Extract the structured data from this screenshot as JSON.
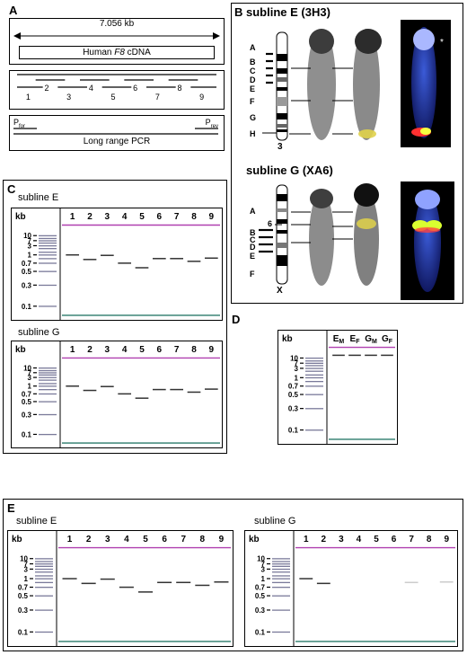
{
  "panels": {
    "A": {
      "label": "A",
      "length_label": "7.056 kb",
      "cdna_pre": "Human ",
      "cdna_gene": "F8",
      "cdna_post": " cDNA",
      "amplicons": [
        "1",
        "2",
        "3",
        "4",
        "5",
        "6",
        "7",
        "8",
        "9"
      ],
      "primer_for_main": "P",
      "primer_for_sub": "for",
      "primer_rev_main": "P",
      "primer_rev_sub": "rev",
      "pcr_label": "Long range PCR"
    },
    "B": {
      "label": "B",
      "title_e": "subline E (3H3)",
      "title_g": "subline G (XA6)",
      "bands_e": [
        "A",
        "B",
        "C",
        "D",
        "E",
        "F",
        "G",
        "H"
      ],
      "chrom_e": "3",
      "bands_g": [
        "A",
        "B",
        "C",
        "D",
        "E",
        "F"
      ],
      "band_g_marker": "6",
      "chrom_g": "X",
      "asterisk": "*"
    },
    "C": {
      "label": "C",
      "subline_e": "subline E",
      "subline_g": "subline G"
    },
    "D": {
      "label": "D",
      "lanes": [
        {
          "main": "E",
          "sub": "M"
        },
        {
          "main": "E",
          "sub": "F"
        },
        {
          "main": "G",
          "sub": "M"
        },
        {
          "main": "G",
          "sub": "F"
        }
      ]
    },
    "E": {
      "label": "E",
      "subline_e": "subline E",
      "subline_g": "subline G"
    }
  },
  "gel": {
    "kb_label": "kb",
    "ladder": [
      "10",
      "7",
      "3",
      "1",
      "0.7",
      "0.5",
      "0.3",
      "0.1"
    ],
    "lanes": [
      "1",
      "2",
      "3",
      "4",
      "5",
      "6",
      "7",
      "8",
      "9"
    ]
  }
}
